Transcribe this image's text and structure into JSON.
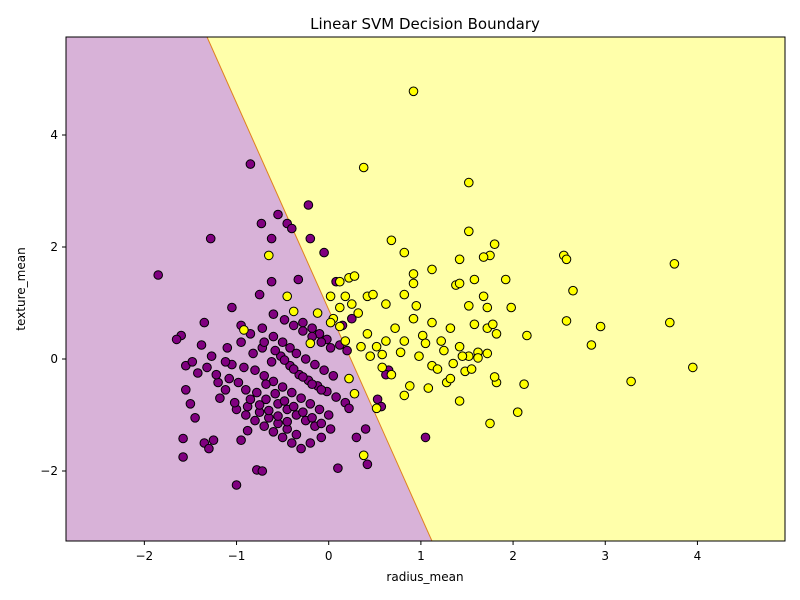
{
  "chart_data": {
    "type": "scatter",
    "title": "Linear SVM Decision Boundary",
    "xlabel": "radius_mean",
    "ylabel": "texture_mean",
    "xlim": [
      -2.85,
      4.95
    ],
    "ylim": [
      -3.25,
      5.75
    ],
    "xticks": [
      -2,
      -1,
      0,
      1,
      2,
      3,
      4
    ],
    "yticks": [
      -2,
      0,
      2,
      4
    ],
    "grid": false,
    "decision_boundary": {
      "points": [
        [
          -1.32,
          5.75
        ],
        [
          1.12,
          -3.25
        ]
      ],
      "region_colors": {
        "class_0": "#d8b2d8",
        "class_1": "#ffffaa"
      }
    },
    "series": [
      {
        "color": "#800080",
        "points": [
          [
            -1.85,
            1.5
          ],
          [
            -0.85,
            3.48
          ],
          [
            -1.28,
            2.15
          ],
          [
            -0.22,
            2.75
          ],
          [
            -0.45,
            2.42
          ],
          [
            -0.55,
            2.58
          ],
          [
            -0.4,
            2.33
          ],
          [
            -0.62,
            2.15
          ],
          [
            -0.2,
            2.15
          ],
          [
            -0.73,
            2.42
          ],
          [
            -0.05,
            1.9
          ],
          [
            -0.33,
            1.42
          ],
          [
            -0.62,
            1.38
          ],
          [
            -0.75,
            1.15
          ],
          [
            0.08,
            1.38
          ],
          [
            -1.05,
            0.92
          ],
          [
            -1.35,
            0.65
          ],
          [
            -1.6,
            0.42
          ],
          [
            -1.55,
            -0.12
          ],
          [
            -1.48,
            -0.05
          ],
          [
            -1.38,
            0.25
          ],
          [
            -1.27,
            0.05
          ],
          [
            -1.2,
            -0.42
          ],
          [
            -1.05,
            -0.1
          ],
          [
            -0.95,
            0.6
          ],
          [
            -0.85,
            0.45
          ],
          [
            -0.72,
            0.55
          ],
          [
            -0.6,
            0.4
          ],
          [
            -0.5,
            0.3
          ],
          [
            -0.42,
            0.2
          ],
          [
            -0.35,
            0.1
          ],
          [
            -0.25,
            0.0
          ],
          [
            -0.15,
            -0.1
          ],
          [
            -0.05,
            -0.2
          ],
          [
            0.05,
            -0.3
          ],
          [
            -0.8,
            -0.2
          ],
          [
            -0.7,
            -0.3
          ],
          [
            -0.6,
            -0.4
          ],
          [
            -0.5,
            -0.5
          ],
          [
            -0.4,
            -0.6
          ],
          [
            -0.3,
            -0.7
          ],
          [
            -0.2,
            -0.8
          ],
          [
            -0.1,
            -0.9
          ],
          [
            0.0,
            -1.0
          ],
          [
            -1.0,
            -0.9
          ],
          [
            -0.9,
            -1.0
          ],
          [
            -0.8,
            -1.1
          ],
          [
            -0.7,
            -1.2
          ],
          [
            -0.6,
            -1.3
          ],
          [
            -0.5,
            -1.4
          ],
          [
            -0.4,
            -1.5
          ],
          [
            -0.3,
            -1.6
          ],
          [
            -1.55,
            -0.55
          ],
          [
            -1.5,
            -0.8
          ],
          [
            -1.45,
            -1.05
          ],
          [
            -1.58,
            -1.42
          ],
          [
            -1.58,
            -1.75
          ],
          [
            -1.35,
            -1.5
          ],
          [
            -1.3,
            -1.6
          ],
          [
            -1.25,
            -1.45
          ],
          [
            -1.0,
            -2.25
          ],
          [
            -0.78,
            -1.98
          ],
          [
            -0.72,
            -2.0
          ],
          [
            -0.95,
            -1.45
          ],
          [
            -0.88,
            -1.28
          ],
          [
            -0.2,
            -1.5
          ],
          [
            -0.08,
            -1.4
          ],
          [
            0.1,
            -1.95
          ],
          [
            0.3,
            -1.4
          ],
          [
            0.4,
            -1.25
          ],
          [
            0.42,
            -1.88
          ],
          [
            0.53,
            -0.72
          ],
          [
            0.57,
            -0.85
          ],
          [
            0.65,
            -0.2
          ],
          [
            0.62,
            -0.28
          ],
          [
            1.05,
            -1.4
          ],
          [
            -0.9,
            -0.55
          ],
          [
            -0.78,
            -0.6
          ],
          [
            -0.68,
            -0.72
          ],
          [
            -0.55,
            -0.8
          ],
          [
            -0.45,
            -0.9
          ],
          [
            -0.35,
            -1.0
          ],
          [
            -0.25,
            -1.1
          ],
          [
            -0.15,
            -1.2
          ],
          [
            -1.12,
            -0.55
          ],
          [
            -1.08,
            -0.35
          ],
          [
            -0.98,
            -0.42
          ],
          [
            -0.92,
            -0.15
          ],
          [
            -0.82,
            0.1
          ],
          [
            -0.72,
            0.2
          ],
          [
            -0.62,
            -0.05
          ],
          [
            -0.52,
            0.05
          ],
          [
            -0.42,
            -0.12
          ],
          [
            -0.32,
            -0.28
          ],
          [
            -0.22,
            -0.38
          ],
          [
            -0.12,
            -0.48
          ],
          [
            -0.02,
            -0.58
          ],
          [
            0.08,
            -0.68
          ],
          [
            0.18,
            -0.78
          ],
          [
            0.22,
            -0.88
          ],
          [
            -1.65,
            0.35
          ],
          [
            -1.42,
            -0.25
          ],
          [
            -1.18,
            -0.7
          ],
          [
            -1.02,
            -0.78
          ],
          [
            -0.88,
            -0.85
          ],
          [
            -0.75,
            -0.95
          ],
          [
            -0.65,
            -1.05
          ],
          [
            -0.55,
            -1.15
          ],
          [
            -0.45,
            -1.25
          ],
          [
            -0.35,
            -1.35
          ],
          [
            -0.28,
            0.65
          ],
          [
            -0.18,
            0.55
          ],
          [
            -0.1,
            0.45
          ],
          [
            -0.02,
            0.35
          ],
          [
            0.12,
            0.25
          ],
          [
            0.2,
            0.15
          ],
          [
            0.25,
            0.72
          ],
          [
            0.15,
            0.6
          ],
          [
            -0.95,
            0.3
          ],
          [
            -1.1,
            0.2
          ],
          [
            -0.6,
            0.8
          ],
          [
            -0.48,
            0.7
          ],
          [
            -0.38,
            0.6
          ],
          [
            -0.28,
            0.5
          ],
          [
            -0.18,
            0.4
          ],
          [
            -0.08,
            0.3
          ],
          [
            0.02,
            0.2
          ],
          [
            -0.7,
            0.3
          ],
          [
            -0.58,
            0.15
          ],
          [
            -0.48,
            -0.02
          ],
          [
            -0.38,
            -0.18
          ],
          [
            -0.28,
            -0.32
          ],
          [
            -0.18,
            -0.45
          ],
          [
            -0.08,
            -0.55
          ],
          [
            -1.32,
            -0.15
          ],
          [
            -1.22,
            -0.28
          ],
          [
            -1.12,
            -0.05
          ],
          [
            -0.68,
            -0.45
          ],
          [
            -0.58,
            -0.62
          ],
          [
            -0.48,
            -0.75
          ],
          [
            -0.38,
            -0.85
          ],
          [
            -0.28,
            -0.95
          ],
          [
            -0.18,
            -1.05
          ],
          [
            -0.08,
            -1.15
          ],
          [
            0.02,
            -1.25
          ],
          [
            -0.85,
            -0.72
          ],
          [
            -0.75,
            -0.82
          ],
          [
            -0.65,
            -0.92
          ],
          [
            -0.55,
            -1.02
          ],
          [
            -0.45,
            -1.12
          ]
        ]
      },
      {
        "color": "#ffff00",
        "points": [
          [
            0.92,
            4.78
          ],
          [
            0.38,
            3.42
          ],
          [
            1.52,
            3.15
          ],
          [
            1.52,
            2.28
          ],
          [
            0.68,
            2.12
          ],
          [
            1.8,
            2.05
          ],
          [
            0.82,
            1.9
          ],
          [
            0.92,
            1.52
          ],
          [
            1.12,
            1.6
          ],
          [
            2.55,
            1.85
          ],
          [
            2.58,
            1.78
          ],
          [
            3.75,
            1.7
          ],
          [
            2.65,
            1.22
          ],
          [
            1.42,
            1.78
          ],
          [
            1.75,
            1.85
          ],
          [
            1.68,
            1.82
          ],
          [
            1.38,
            1.32
          ],
          [
            1.42,
            1.35
          ],
          [
            1.58,
            1.42
          ],
          [
            1.92,
            1.42
          ],
          [
            1.68,
            1.12
          ],
          [
            1.52,
            0.95
          ],
          [
            1.72,
            0.92
          ],
          [
            1.98,
            0.92
          ],
          [
            2.58,
            0.68
          ],
          [
            2.95,
            0.58
          ],
          [
            3.7,
            0.65
          ],
          [
            2.15,
            0.42
          ],
          [
            2.85,
            0.25
          ],
          [
            3.28,
            -0.4
          ],
          [
            3.95,
            -0.15
          ],
          [
            2.05,
            -0.95
          ],
          [
            2.12,
            -0.45
          ],
          [
            1.75,
            -1.15
          ],
          [
            1.42,
            -0.75
          ],
          [
            1.82,
            -0.42
          ],
          [
            1.8,
            -0.32
          ],
          [
            -0.65,
            1.85
          ],
          [
            -0.45,
            1.12
          ],
          [
            0.12,
            1.38
          ],
          [
            0.22,
            1.45
          ],
          [
            0.28,
            1.48
          ],
          [
            0.42,
            1.12
          ],
          [
            0.48,
            1.15
          ],
          [
            0.62,
            0.98
          ],
          [
            0.82,
            1.15
          ],
          [
            0.92,
            1.35
          ],
          [
            0.95,
            0.95
          ],
          [
            0.12,
            0.92
          ],
          [
            0.02,
            1.12
          ],
          [
            0.18,
            1.12
          ],
          [
            0.25,
            0.98
          ],
          [
            0.32,
            0.82
          ],
          [
            0.12,
            0.58
          ],
          [
            0.05,
            0.72
          ],
          [
            0.42,
            0.45
          ],
          [
            0.52,
            0.22
          ],
          [
            0.62,
            0.32
          ],
          [
            0.72,
            0.55
          ],
          [
            0.78,
            0.12
          ],
          [
            0.82,
            0.32
          ],
          [
            0.92,
            0.72
          ],
          [
            1.02,
            0.42
          ],
          [
            1.12,
            0.65
          ],
          [
            1.22,
            0.32
          ],
          [
            1.32,
            0.55
          ],
          [
            1.42,
            0.22
          ],
          [
            1.52,
            0.05
          ],
          [
            1.62,
            0.12
          ],
          [
            1.72,
            0.55
          ],
          [
            1.78,
            0.62
          ],
          [
            1.82,
            0.45
          ],
          [
            1.12,
            -0.12
          ],
          [
            1.18,
            -0.18
          ],
          [
            1.28,
            -0.42
          ],
          [
            1.32,
            -0.35
          ],
          [
            1.48,
            -0.22
          ],
          [
            1.55,
            -0.18
          ],
          [
            1.08,
            -0.52
          ],
          [
            0.82,
            -0.65
          ],
          [
            0.88,
            -0.48
          ],
          [
            0.52,
            -0.88
          ],
          [
            0.58,
            -0.15
          ],
          [
            0.45,
            0.05
          ],
          [
            0.35,
            0.22
          ],
          [
            -0.92,
            0.52
          ],
          [
            -0.38,
            0.85
          ],
          [
            -0.2,
            0.28
          ],
          [
            -0.12,
            0.82
          ],
          [
            0.02,
            0.65
          ],
          [
            0.18,
            0.32
          ],
          [
            0.22,
            -0.35
          ],
          [
            0.28,
            -0.62
          ],
          [
            0.38,
            -1.72
          ],
          [
            0.58,
            0.08
          ],
          [
            0.68,
            -0.28
          ],
          [
            0.98,
            0.05
          ],
          [
            1.05,
            0.28
          ],
          [
            1.25,
            0.15
          ],
          [
            1.35,
            -0.08
          ],
          [
            1.45,
            0.05
          ],
          [
            1.58,
            0.62
          ],
          [
            1.62,
            0.02
          ],
          [
            1.72,
            0.1
          ]
        ]
      }
    ]
  }
}
